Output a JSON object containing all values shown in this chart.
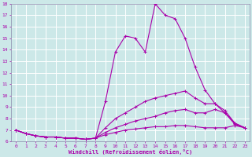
{
  "xlabel": "Windchill (Refroidissement éolien,°C)",
  "background_color": "#cce8e8",
  "line_color": "#aa00aa",
  "grid_color": "#ffffff",
  "spine_color": "#8888aa",
  "xlim": [
    -0.5,
    23.5
  ],
  "ylim": [
    6,
    18
  ],
  "xticks": [
    0,
    1,
    2,
    3,
    4,
    5,
    6,
    7,
    8,
    9,
    10,
    11,
    12,
    13,
    14,
    15,
    16,
    17,
    18,
    19,
    20,
    21,
    22,
    23
  ],
  "yticks": [
    6,
    7,
    8,
    9,
    10,
    11,
    12,
    13,
    14,
    15,
    16,
    17,
    18
  ],
  "curves": [
    {
      "x": [
        0,
        1,
        2,
        3,
        4,
        5,
        6,
        7,
        8,
        9,
        10,
        11,
        12,
        13,
        14,
        15,
        16,
        17,
        18,
        19,
        20,
        21,
        22,
        23
      ],
      "y": [
        7.0,
        6.7,
        6.5,
        6.4,
        6.4,
        6.3,
        6.3,
        6.2,
        6.3,
        9.5,
        13.8,
        15.2,
        15.0,
        13.8,
        18.0,
        17.0,
        16.7,
        15.0,
        12.5,
        10.5,
        9.3,
        8.5,
        7.5,
        7.2
      ]
    },
    {
      "x": [
        0,
        1,
        2,
        3,
        4,
        5,
        6,
        7,
        8,
        9,
        10,
        11,
        12,
        13,
        14,
        15,
        16,
        17,
        18,
        19,
        20,
        21,
        22,
        23
      ],
      "y": [
        7.0,
        6.7,
        6.5,
        6.4,
        6.4,
        6.3,
        6.3,
        6.2,
        6.3,
        7.2,
        8.0,
        8.5,
        9.0,
        9.5,
        9.8,
        10.0,
        10.2,
        10.4,
        9.8,
        9.3,
        9.3,
        8.7,
        7.6,
        7.2
      ]
    },
    {
      "x": [
        0,
        1,
        2,
        3,
        4,
        5,
        6,
        7,
        8,
        9,
        10,
        11,
        12,
        13,
        14,
        15,
        16,
        17,
        18,
        19,
        20,
        21,
        22,
        23
      ],
      "y": [
        7.0,
        6.7,
        6.5,
        6.4,
        6.4,
        6.3,
        6.3,
        6.2,
        6.3,
        6.8,
        7.2,
        7.5,
        7.8,
        8.0,
        8.2,
        8.5,
        8.7,
        8.8,
        8.5,
        8.5,
        8.8,
        8.5,
        7.6,
        7.2
      ]
    },
    {
      "x": [
        0,
        1,
        2,
        3,
        4,
        5,
        6,
        7,
        8,
        9,
        10,
        11,
        12,
        13,
        14,
        15,
        16,
        17,
        18,
        19,
        20,
        21,
        22,
        23
      ],
      "y": [
        7.0,
        6.7,
        6.5,
        6.4,
        6.4,
        6.3,
        6.3,
        6.2,
        6.3,
        6.6,
        6.8,
        7.0,
        7.1,
        7.2,
        7.3,
        7.3,
        7.4,
        7.4,
        7.3,
        7.2,
        7.2,
        7.2,
        7.4,
        7.2
      ]
    }
  ]
}
